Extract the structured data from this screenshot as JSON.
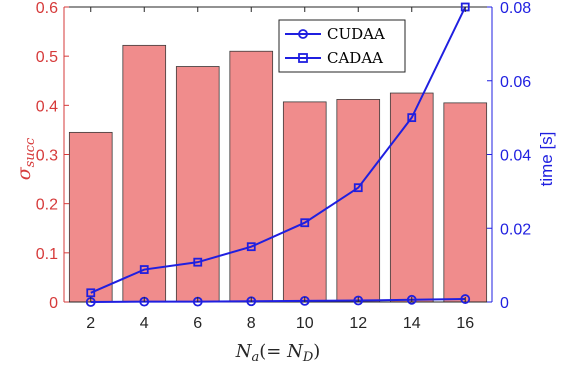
{
  "chart_data": {
    "type": "bar",
    "categories": [
      "2",
      "4",
      "6",
      "8",
      "10",
      "12",
      "14",
      "16"
    ],
    "bars": {
      "axis": "left",
      "values": [
        0.345,
        0.522,
        0.479,
        0.51,
        0.407,
        0.412,
        0.425,
        0.405
      ],
      "color": "#f08c8c"
    },
    "series": [
      {
        "name": "CUDAA",
        "axis": "right",
        "marker": "circle",
        "color": "#1f1fe0",
        "values": [
          0.0,
          0.0001,
          0.0001,
          0.0002,
          0.0003,
          0.0004,
          0.0006,
          0.0008
        ]
      },
      {
        "name": "CADAA",
        "axis": "right",
        "marker": "square",
        "color": "#1f1fe0",
        "values": [
          0.0025,
          0.0088,
          0.0108,
          0.015,
          0.0215,
          0.031,
          0.05,
          0.08
        ]
      }
    ],
    "left_axis": {
      "label_base": "σ",
      "label_sub": "succ",
      "ylim": [
        0,
        0.6
      ],
      "ticks": [
        "0",
        "0.1",
        "0.2",
        "0.3",
        "0.4",
        "0.5",
        "0.6"
      ],
      "color": "#d63a3a"
    },
    "right_axis": {
      "label": "time [s]",
      "ylim": [
        0,
        0.08
      ],
      "ticks": [
        "0",
        "0.02",
        "0.04",
        "0.06",
        "0.08"
      ],
      "color": "#1f1fe0"
    },
    "x_axis": {
      "label": "N_a(= N_D)",
      "label_main": "N",
      "label_sub_a": "a",
      "label_mid": "(= ",
      "label_main2": "N",
      "label_sub_d": "D",
      "label_end": ")"
    },
    "legend": {
      "placement": "top-right"
    },
    "grid": false
  }
}
